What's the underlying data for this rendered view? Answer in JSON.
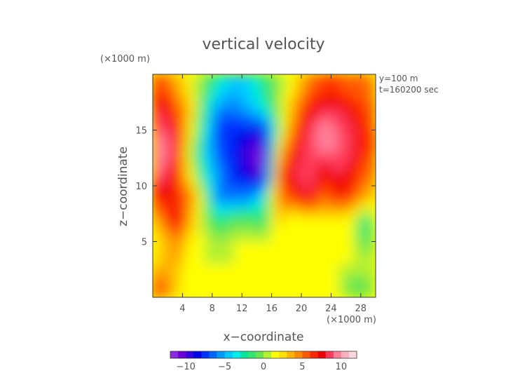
{
  "chart_data": {
    "type": "heatmap",
    "title": "vertical velocity",
    "xlabel": "x−coordinate",
    "ylabel": "z−coordinate",
    "x_unit": "(×1000 m)",
    "y_unit": "(×1000 m)",
    "annotations": [
      "y=100 m",
      "t=160200 sec"
    ],
    "xlim": [
      0,
      30
    ],
    "ylim": [
      0,
      20
    ],
    "x_ticks": [
      4,
      8,
      12,
      16,
      20,
      24,
      28
    ],
    "y_ticks": [
      5,
      10,
      15
    ],
    "colorbar": {
      "ticks": [
        -10,
        -5,
        0,
        5,
        10
      ],
      "range": [
        -12,
        12
      ],
      "colors": [
        "#8a2be2",
        "#6a00d8",
        "#3300dd",
        "#0000e6",
        "#0033ff",
        "#0066ff",
        "#0099ff",
        "#00c8ff",
        "#00eeee",
        "#00e6a0",
        "#33e66e",
        "#66e650",
        "#b4f032",
        "#ffff00",
        "#ffe000",
        "#ffb400",
        "#ff8a00",
        "#ff5a00",
        "#ff2a00",
        "#ee0000",
        "#ff3a5a",
        "#ff7f9a",
        "#ffb0c0",
        "#ffd8de"
      ]
    },
    "z_grid": {
      "nx": 16,
      "nz": 10,
      "x": [
        1,
        3,
        5,
        7,
        9,
        11,
        13,
        15,
        17,
        19,
        21,
        23,
        25,
        27,
        29,
        30
      ],
      "z": [
        1,
        3,
        5,
        7,
        9,
        11,
        13,
        15,
        17,
        19
      ],
      "values": [
        [
          6,
          3,
          1,
          1,
          1,
          1,
          1,
          1,
          1,
          1,
          1,
          1,
          1,
          -1,
          -1,
          1
        ],
        [
          3,
          4,
          1,
          1,
          1,
          1,
          1,
          1,
          1,
          1,
          2,
          1,
          1,
          1,
          1,
          1
        ],
        [
          2,
          5,
          2,
          1,
          0,
          1,
          1,
          1,
          1,
          1,
          1,
          2,
          1,
          1,
          -2,
          1
        ],
        [
          4,
          8,
          4,
          0,
          -2,
          -1,
          -1,
          -2,
          3,
          1,
          2,
          2,
          2,
          1,
          -3,
          2
        ],
        [
          7,
          7,
          5,
          0,
          -7,
          -6,
          -6,
          -3,
          5,
          6,
          8,
          5,
          7,
          6,
          3,
          4
        ],
        [
          9,
          7,
          2,
          -3,
          -6,
          -8,
          -9,
          -11,
          6,
          8,
          9,
          7,
          8,
          7,
          5,
          5
        ],
        [
          10,
          8,
          1,
          -4,
          -7,
          -8,
          -10,
          -12,
          3,
          7,
          9,
          9,
          9,
          8,
          6,
          6
        ],
        [
          9,
          8,
          2,
          -3,
          -8,
          -8,
          -8,
          -9,
          0,
          5,
          8,
          10,
          9,
          8,
          6,
          6
        ],
        [
          8,
          6,
          3,
          -2,
          -6,
          -6,
          -5,
          -3,
          0,
          4,
          7,
          8,
          8,
          7,
          6,
          5
        ],
        [
          6,
          4,
          2,
          -1,
          -3,
          -5,
          -4,
          -2,
          0,
          2,
          5,
          6,
          6,
          5,
          5,
          4
        ]
      ]
    }
  }
}
